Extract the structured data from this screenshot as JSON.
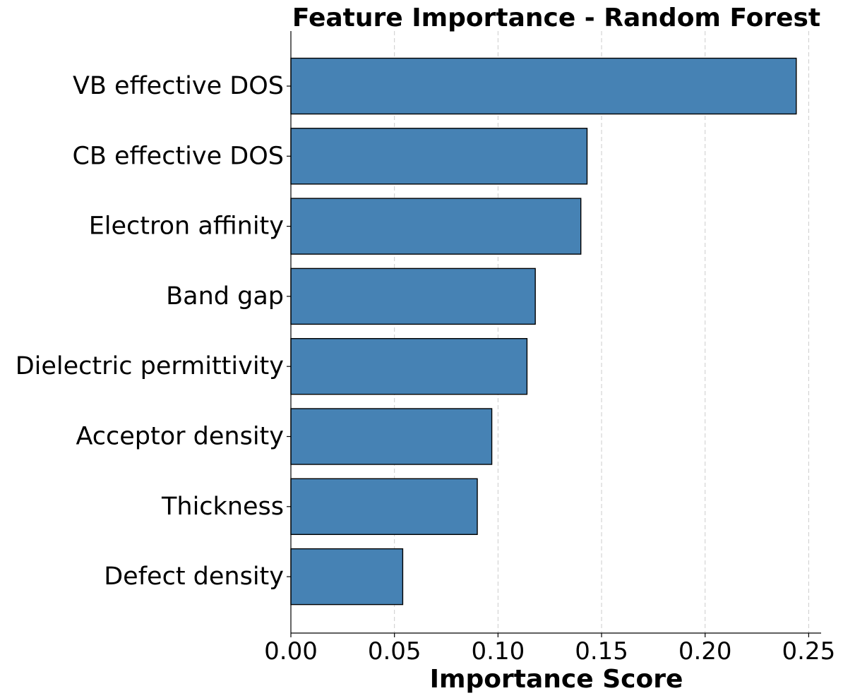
{
  "chart_data": {
    "type": "bar",
    "orientation": "horizontal",
    "title": "Feature Importance - Random Forest",
    "xlabel": "Importance Score",
    "ylabel": "",
    "categories": [
      "VB effective DOS",
      "CB effective DOS",
      "Electron affinity",
      "Band gap",
      "Dielectric permittivity",
      "Acceptor density",
      "Thickness",
      "Defect density"
    ],
    "values": [
      0.244,
      0.143,
      0.14,
      0.118,
      0.114,
      0.097,
      0.09,
      0.054
    ],
    "xlim": [
      0,
      0.256
    ],
    "xticks": [
      0.0,
      0.05,
      0.1,
      0.15,
      0.2,
      0.25
    ],
    "xtick_labels": [
      "0.00",
      "0.05",
      "0.10",
      "0.15",
      "0.20",
      "0.25"
    ],
    "grid": "x-axis dashed",
    "bar_color": "#4682b4",
    "bar_edge_color": "#000000"
  }
}
